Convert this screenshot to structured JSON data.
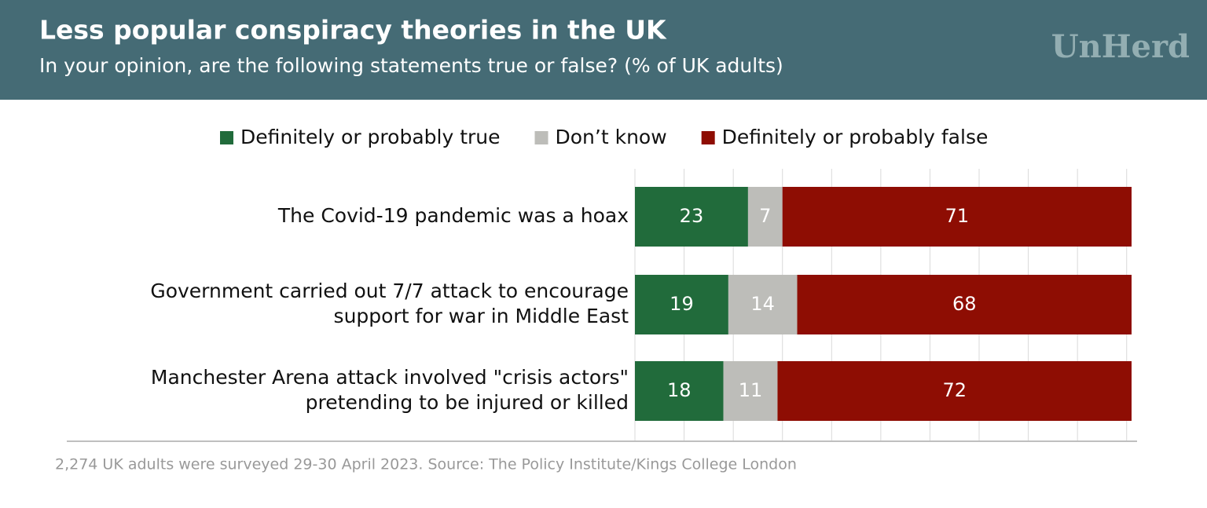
{
  "brand": "UnHerd",
  "chart_data": {
    "type": "stacked_barh",
    "title": "Less popular conspiracy theories in the UK",
    "subtitle": "In your opinion, are the following statements true or false? (% of UK adults)",
    "source": "2,274 UK adults were surveyed 29-30 April 2023. Source: The Policy Institute/Kings College London",
    "categories": [
      [
        "The Covid-19 pandemic was a hoax"
      ],
      [
        "Government carried out 7/7 attack to encourage",
        "support for war in Middle East"
      ],
      [
        "Manchester Arena attack involved \"crisis actors\"",
        "pretending to be injured or killed"
      ]
    ],
    "series": [
      {
        "name": "Definitely or probably true",
        "color": "#216b3b",
        "values": [
          23,
          19,
          18
        ]
      },
      {
        "name": "Don’t know",
        "color": "#bdbdb9",
        "values": [
          7,
          14,
          11
        ]
      },
      {
        "name": "Definitely or probably false",
        "color": "#8e0d03",
        "values": [
          71,
          68,
          72
        ]
      }
    ],
    "xlim": [
      0,
      101
    ],
    "xticks": [
      0,
      10,
      20,
      30,
      40,
      50,
      60,
      70,
      80,
      90,
      100
    ],
    "grid": true,
    "legend": "top"
  }
}
